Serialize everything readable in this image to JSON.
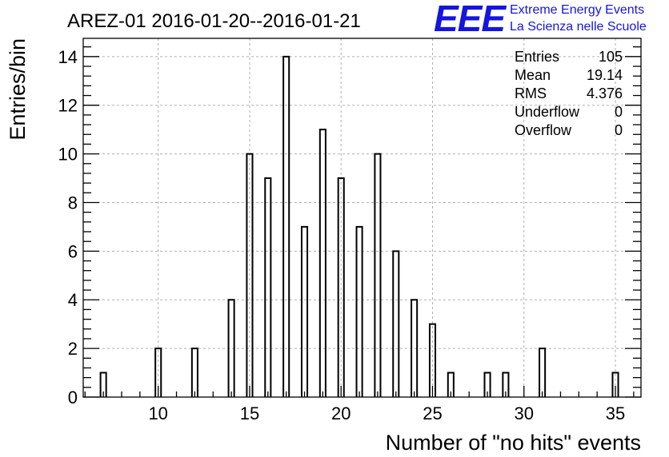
{
  "chart_data": {
    "type": "histogram",
    "title": "AREZ-01 2016-01-20--2016-01-21",
    "xlabel": "Number of \"no hits\" events",
    "ylabel": "Entries/bin",
    "xlim": [
      5.9,
      36.4
    ],
    "ylim": [
      0,
      14.75
    ],
    "xticks": [
      10,
      15,
      20,
      25,
      30,
      35
    ],
    "yticks": [
      0,
      2,
      4,
      6,
      8,
      10,
      12,
      14
    ],
    "bin_width": 0.31,
    "grid": true,
    "bins": [
      {
        "x": 7,
        "count": 1
      },
      {
        "x": 10,
        "count": 2
      },
      {
        "x": 12,
        "count": 2
      },
      {
        "x": 14,
        "count": 4
      },
      {
        "x": 15,
        "count": 10
      },
      {
        "x": 16,
        "count": 9
      },
      {
        "x": 17,
        "count": 14
      },
      {
        "x": 18,
        "count": 7
      },
      {
        "x": 19,
        "count": 11
      },
      {
        "x": 20,
        "count": 9
      },
      {
        "x": 21,
        "count": 7
      },
      {
        "x": 22,
        "count": 10
      },
      {
        "x": 23,
        "count": 6
      },
      {
        "x": 24,
        "count": 4
      },
      {
        "x": 25,
        "count": 3
      },
      {
        "x": 26,
        "count": 1
      },
      {
        "x": 28,
        "count": 1
      },
      {
        "x": 29,
        "count": 1
      },
      {
        "x": 31,
        "count": 2
      },
      {
        "x": 35,
        "count": 1
      }
    ],
    "stats": [
      {
        "label": "Entries",
        "value": "105"
      },
      {
        "label": "Mean",
        "value": "19.14"
      },
      {
        "label": "RMS",
        "value": "4.376"
      },
      {
        "label": "Underflow",
        "value": "0"
      },
      {
        "label": "Overflow",
        "value": "0"
      }
    ]
  },
  "logo": {
    "letters": "EEE",
    "line1": "Extreme Energy Events",
    "line2": "La Scienza nelle Scuole",
    "color": "#1515e0"
  }
}
